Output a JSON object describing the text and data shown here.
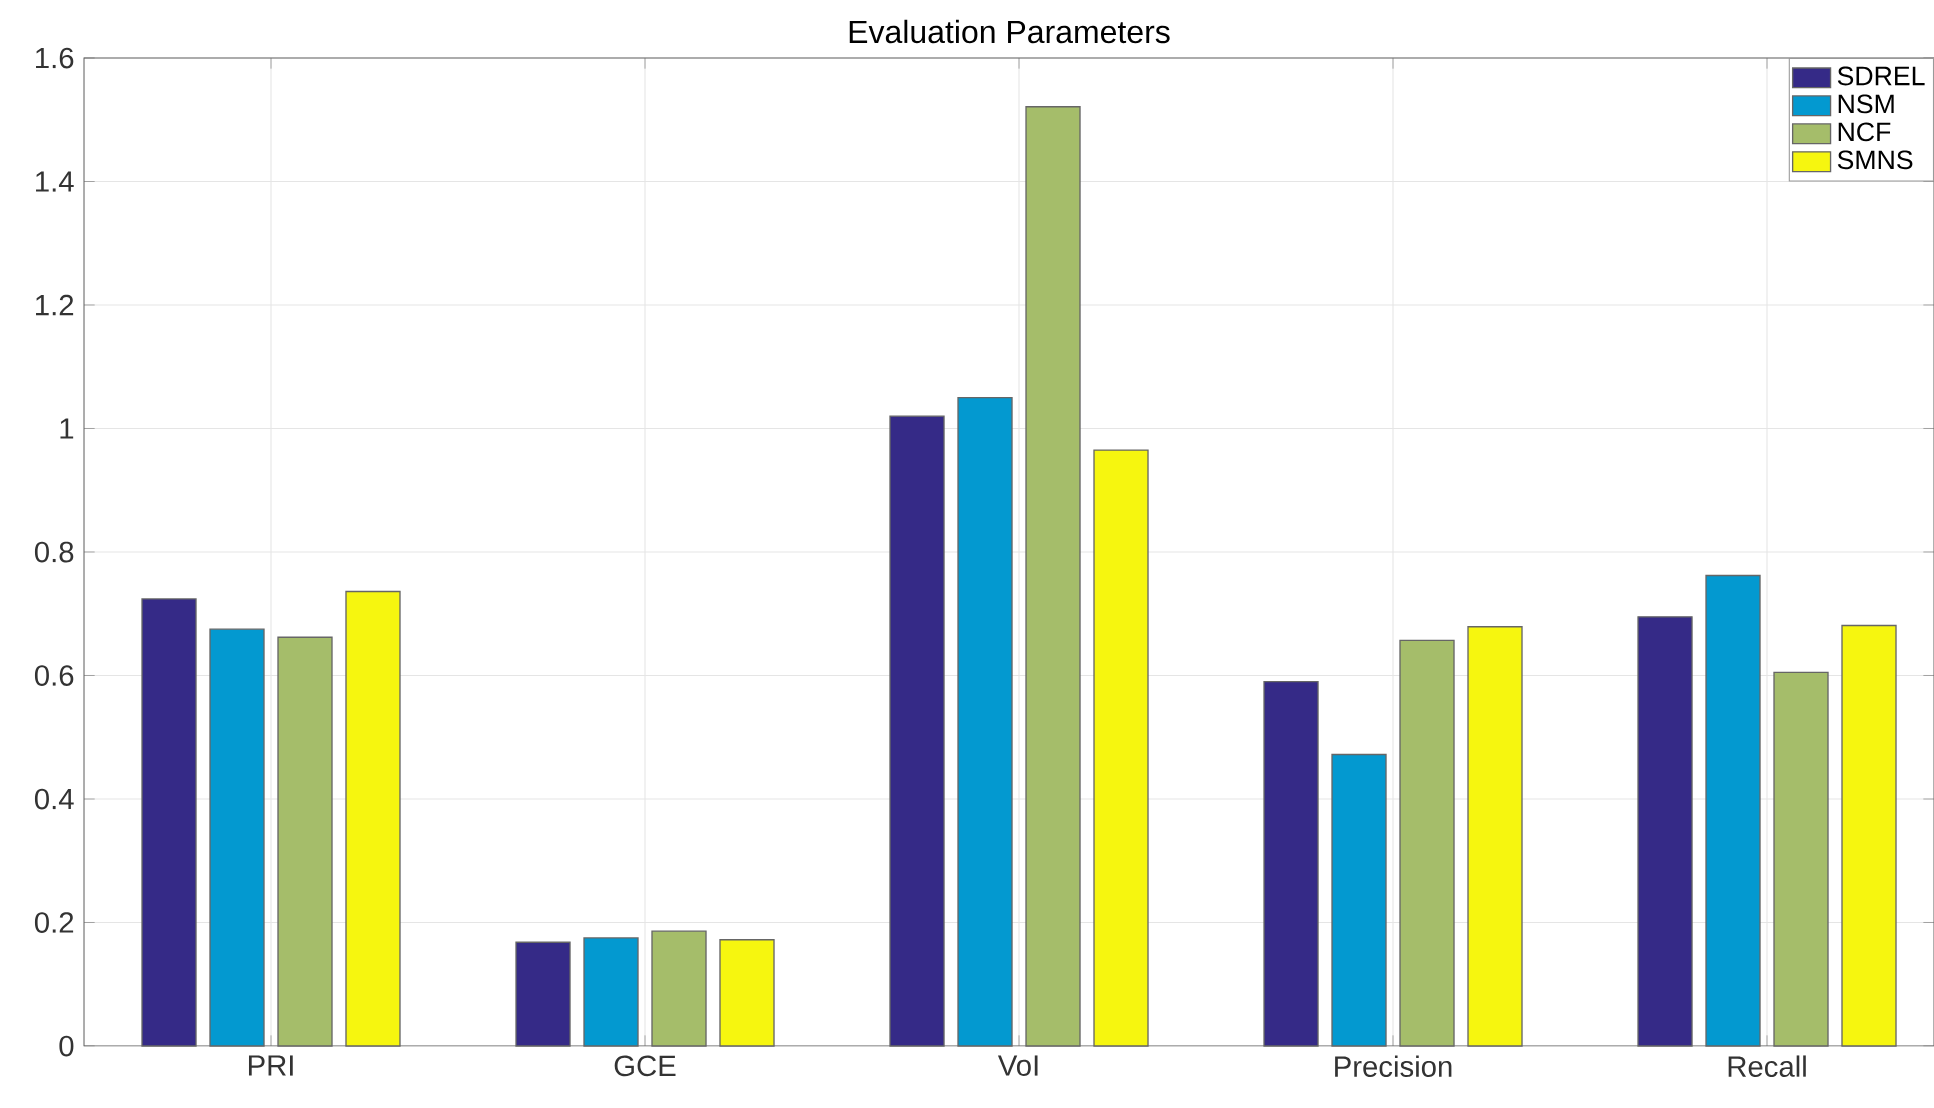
{
  "chart_data": {
    "type": "bar",
    "title": "Evaluation Parameters",
    "categories": [
      "PRI",
      "GCE",
      "VoI",
      "Precision",
      "Recall"
    ],
    "series": [
      {
        "name": "SDREL",
        "color": "#352a87",
        "values": [
          0.724,
          0.168,
          1.02,
          0.59,
          0.695
        ]
      },
      {
        "name": "NSM",
        "color": "#0399d0",
        "values": [
          0.675,
          0.175,
          1.05,
          0.472,
          0.762
        ]
      },
      {
        "name": "NCF",
        "color": "#a5bd6a",
        "values": [
          0.662,
          0.186,
          1.521,
          0.657,
          0.605
        ]
      },
      {
        "name": "SMNS",
        "color": "#f6f60f",
        "values": [
          0.736,
          0.172,
          0.965,
          0.679,
          0.681
        ]
      }
    ],
    "ylim": [
      0,
      1.6
    ],
    "yticks": [
      0,
      0.2,
      0.4,
      0.6,
      0.8,
      1,
      1.2,
      1.4,
      1.6
    ],
    "grid": true,
    "legend": "top right"
  }
}
